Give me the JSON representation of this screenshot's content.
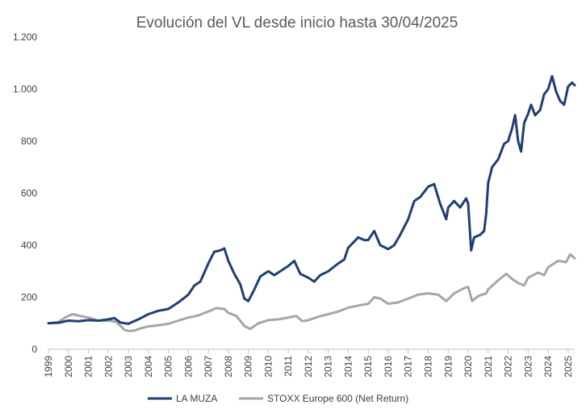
{
  "chart_data": {
    "type": "line",
    "title": "Evolución del VL desde inicio hasta 30/04/2025",
    "xlabel": "",
    "ylabel": "",
    "xlim": [
      1999.0,
      2025.33
    ],
    "ylim": [
      0,
      1200
    ],
    "y_ticks": [
      0,
      200,
      400,
      600,
      800,
      1000,
      1200
    ],
    "y_tick_labels": [
      "0",
      "200",
      "400",
      "600",
      "800",
      "1.000",
      "1.200"
    ],
    "x_ticks": [
      1999,
      2000,
      2001,
      2002,
      2003,
      2004,
      2005,
      2006,
      2007,
      2008,
      2009,
      2010,
      2011,
      2012,
      2013,
      2014,
      2015,
      2016,
      2017,
      2018,
      2019,
      2020,
      2021,
      2022,
      2023,
      2024,
      2025
    ],
    "x_tick_labels": [
      "1999",
      "2000",
      "2001",
      "2002",
      "2003",
      "2004",
      "2005",
      "2006",
      "2007",
      "2008",
      "2009",
      "2010",
      "2011",
      "2012",
      "2013",
      "2014",
      "2015",
      "2016",
      "2017",
      "2018",
      "2019",
      "2020",
      "2021",
      "2022",
      "2023",
      "2024",
      "2025"
    ],
    "grid": false,
    "legend_position": "bottom",
    "series": [
      {
        "name": "LA MUZA",
        "color": "#1f3f74",
        "points": [
          [
            1999.0,
            100
          ],
          [
            1999.5,
            102
          ],
          [
            2000.0,
            110
          ],
          [
            2000.5,
            108
          ],
          [
            2001.0,
            112
          ],
          [
            2001.5,
            110
          ],
          [
            2002.0,
            115
          ],
          [
            2002.3,
            120
          ],
          [
            2002.6,
            103
          ],
          [
            2003.0,
            98
          ],
          [
            2003.5,
            115
          ],
          [
            2004.0,
            135
          ],
          [
            2004.5,
            148
          ],
          [
            2005.0,
            155
          ],
          [
            2005.5,
            180
          ],
          [
            2006.0,
            210
          ],
          [
            2006.3,
            245
          ],
          [
            2006.6,
            260
          ],
          [
            2007.0,
            330
          ],
          [
            2007.3,
            375
          ],
          [
            2007.6,
            380
          ],
          [
            2007.8,
            388
          ],
          [
            2008.0,
            340
          ],
          [
            2008.3,
            290
          ],
          [
            2008.6,
            250
          ],
          [
            2008.8,
            195
          ],
          [
            2009.0,
            185
          ],
          [
            2009.3,
            230
          ],
          [
            2009.6,
            280
          ],
          [
            2010.0,
            300
          ],
          [
            2010.3,
            285
          ],
          [
            2010.6,
            300
          ],
          [
            2011.0,
            320
          ],
          [
            2011.3,
            340
          ],
          [
            2011.6,
            290
          ],
          [
            2012.0,
            275
          ],
          [
            2012.3,
            260
          ],
          [
            2012.6,
            285
          ],
          [
            2013.0,
            300
          ],
          [
            2013.5,
            330
          ],
          [
            2013.8,
            345
          ],
          [
            2014.0,
            390
          ],
          [
            2014.5,
            430
          ],
          [
            2014.8,
            420
          ],
          [
            2015.0,
            420
          ],
          [
            2015.3,
            455
          ],
          [
            2015.6,
            400
          ],
          [
            2016.0,
            385
          ],
          [
            2016.3,
            400
          ],
          [
            2016.6,
            440
          ],
          [
            2017.0,
            500
          ],
          [
            2017.3,
            570
          ],
          [
            2017.6,
            585
          ],
          [
            2018.0,
            625
          ],
          [
            2018.3,
            635
          ],
          [
            2018.6,
            560
          ],
          [
            2018.9,
            500
          ],
          [
            2019.0,
            545
          ],
          [
            2019.3,
            570
          ],
          [
            2019.6,
            545
          ],
          [
            2019.9,
            580
          ],
          [
            2020.0,
            560
          ],
          [
            2020.15,
            380
          ],
          [
            2020.3,
            430
          ],
          [
            2020.6,
            440
          ],
          [
            2020.8,
            455
          ],
          [
            2020.9,
            520
          ],
          [
            2021.0,
            640
          ],
          [
            2021.2,
            700
          ],
          [
            2021.5,
            730
          ],
          [
            2021.8,
            790
          ],
          [
            2022.0,
            800
          ],
          [
            2022.2,
            850
          ],
          [
            2022.35,
            900
          ],
          [
            2022.5,
            800
          ],
          [
            2022.65,
            760
          ],
          [
            2022.8,
            870
          ],
          [
            2023.0,
            905
          ],
          [
            2023.15,
            940
          ],
          [
            2023.35,
            900
          ],
          [
            2023.6,
            920
          ],
          [
            2023.8,
            980
          ],
          [
            2024.0,
            1000
          ],
          [
            2024.2,
            1050
          ],
          [
            2024.4,
            990
          ],
          [
            2024.6,
            955
          ],
          [
            2024.8,
            940
          ],
          [
            2025.0,
            1010
          ],
          [
            2025.2,
            1025
          ],
          [
            2025.33,
            1015
          ]
        ]
      },
      {
        "name": "STOXX Europe 600 (Net Return)",
        "color": "#a6a6a6",
        "points": [
          [
            1999.0,
            100
          ],
          [
            1999.5,
            105
          ],
          [
            1999.9,
            125
          ],
          [
            2000.2,
            135
          ],
          [
            2000.6,
            128
          ],
          [
            2001.0,
            122
          ],
          [
            2001.5,
            110
          ],
          [
            2002.0,
            110
          ],
          [
            2002.4,
            105
          ],
          [
            2002.8,
            75
          ],
          [
            2003.0,
            70
          ],
          [
            2003.3,
            72
          ],
          [
            2003.6,
            80
          ],
          [
            2004.0,
            88
          ],
          [
            2004.5,
            92
          ],
          [
            2005.0,
            98
          ],
          [
            2005.5,
            110
          ],
          [
            2006.0,
            122
          ],
          [
            2006.5,
            130
          ],
          [
            2007.0,
            145
          ],
          [
            2007.4,
            158
          ],
          [
            2007.8,
            155
          ],
          [
            2008.0,
            140
          ],
          [
            2008.4,
            128
          ],
          [
            2008.8,
            90
          ],
          [
            2009.1,
            78
          ],
          [
            2009.5,
            100
          ],
          [
            2010.0,
            112
          ],
          [
            2010.5,
            115
          ],
          [
            2011.0,
            122
          ],
          [
            2011.4,
            128
          ],
          [
            2011.7,
            108
          ],
          [
            2012.0,
            112
          ],
          [
            2012.5,
            125
          ],
          [
            2013.0,
            135
          ],
          [
            2013.5,
            145
          ],
          [
            2014.0,
            160
          ],
          [
            2014.5,
            168
          ],
          [
            2015.0,
            175
          ],
          [
            2015.3,
            200
          ],
          [
            2015.6,
            195
          ],
          [
            2016.0,
            175
          ],
          [
            2016.5,
            180
          ],
          [
            2017.0,
            195
          ],
          [
            2017.5,
            210
          ],
          [
            2018.0,
            215
          ],
          [
            2018.5,
            210
          ],
          [
            2018.9,
            185
          ],
          [
            2019.3,
            215
          ],
          [
            2019.8,
            235
          ],
          [
            2020.0,
            240
          ],
          [
            2020.2,
            185
          ],
          [
            2020.5,
            205
          ],
          [
            2020.9,
            215
          ],
          [
            2021.0,
            230
          ],
          [
            2021.5,
            265
          ],
          [
            2021.9,
            290
          ],
          [
            2022.2,
            270
          ],
          [
            2022.5,
            255
          ],
          [
            2022.8,
            245
          ],
          [
            2023.0,
            275
          ],
          [
            2023.5,
            295
          ],
          [
            2023.8,
            285
          ],
          [
            2024.0,
            315
          ],
          [
            2024.5,
            340
          ],
          [
            2024.9,
            335
          ],
          [
            2025.1,
            365
          ],
          [
            2025.33,
            350
          ]
        ]
      }
    ]
  }
}
